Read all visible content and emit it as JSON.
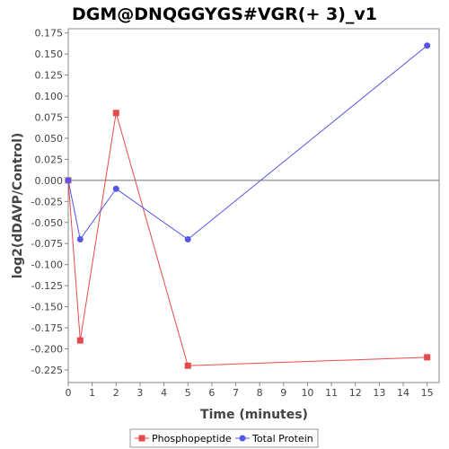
{
  "chart_data": {
    "type": "line",
    "title": "DGM@DNQGGYGS#VGR(+ 3)_v1",
    "xlabel": "Time (minutes)",
    "ylabel": "log2(dDAVP/Control)",
    "xlim": [
      0,
      15.5
    ],
    "ylim": [
      -0.24,
      0.18
    ],
    "xticks": [
      0,
      1,
      2,
      3,
      4,
      5,
      6,
      7,
      8,
      9,
      10,
      11,
      12,
      13,
      14,
      15
    ],
    "yticks": [
      -0.225,
      -0.2,
      -0.175,
      -0.15,
      -0.125,
      -0.1,
      -0.075,
      -0.05,
      -0.025,
      0.0,
      0.025,
      0.05,
      0.075,
      0.1,
      0.125,
      0.15,
      0.175
    ],
    "ytick_labels": [
      "-0.225",
      "-0.200",
      "-0.175",
      "-0.150",
      "-0.125",
      "-0.100",
      "-0.075",
      "-0.050",
      "-0.025",
      "0.000",
      "0.025",
      "0.050",
      "0.075",
      "0.100",
      "0.125",
      "0.150",
      "0.175"
    ],
    "zero_line": true,
    "grid": false,
    "legend_position": "bottom",
    "series": [
      {
        "name": "Phosphopeptide",
        "color": "#e8494b",
        "marker": "square",
        "x": [
          0,
          0.5,
          2,
          5,
          15
        ],
        "y": [
          0.0,
          -0.19,
          0.08,
          -0.22,
          -0.21
        ]
      },
      {
        "name": "Total Protein",
        "color": "#5555e6",
        "marker": "circle",
        "x": [
          0,
          0.5,
          2,
          5,
          15
        ],
        "y": [
          0.0,
          -0.07,
          -0.01,
          -0.07,
          0.16
        ]
      }
    ]
  }
}
